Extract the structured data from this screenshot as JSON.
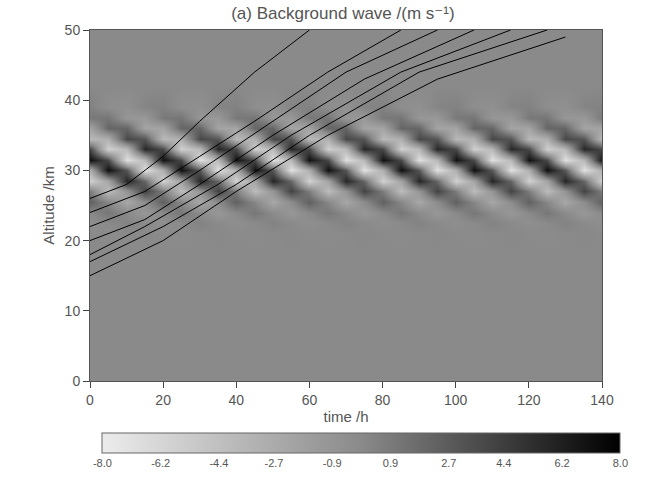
{
  "chart_data": {
    "type": "heatmap",
    "title": "(a) Background wave /(m s⁻¹)",
    "x_label": "time /h",
    "y_label": "Altitude /km",
    "xlim": [
      0,
      140
    ],
    "xticks": [
      0,
      20,
      40,
      60,
      80,
      100,
      120,
      140
    ],
    "ylim": [
      0,
      50
    ],
    "yticks": [
      0,
      10,
      20,
      30,
      40,
      50
    ],
    "x": [
      0,
      5,
      10,
      15,
      20,
      25,
      30,
      35,
      40,
      45,
      50,
      55,
      60,
      65,
      70,
      75,
      80,
      85,
      90,
      95,
      100,
      105,
      110,
      115,
      120,
      125,
      130,
      135,
      140
    ],
    "y": [
      0,
      18,
      21,
      22.5,
      24,
      25.5,
      27,
      28.5,
      30,
      31.5,
      33,
      34.5,
      36,
      37.5,
      39,
      42,
      50
    ],
    "cells": [
      [
        0,
        0,
        0,
        0,
        0,
        0,
        0,
        0,
        0,
        0,
        0,
        0,
        0,
        0,
        0,
        0,
        0,
        0,
        0,
        0,
        0,
        0,
        0,
        0,
        0,
        0,
        0,
        0,
        0
      ],
      [
        0,
        0,
        0,
        0,
        0,
        0,
        0,
        0,
        0,
        0,
        0,
        0,
        0,
        0,
        0,
        0,
        0,
        0,
        0,
        0,
        0,
        0,
        0,
        0,
        0,
        0,
        0,
        0,
        0
      ],
      [
        0,
        -0.1,
        0,
        0.1,
        0,
        -0.1,
        0,
        0.1,
        0,
        -0.1,
        0,
        0.1,
        0,
        -0.1,
        0,
        0.1,
        0,
        -0.1,
        0,
        0.1,
        0,
        -0.1,
        0,
        0.1,
        0,
        -0.1,
        0,
        0.1,
        0
      ],
      [
        -0.4,
        0,
        0.4,
        0,
        -0.4,
        0,
        0.4,
        0,
        -0.4,
        0,
        0.4,
        0,
        -0.4,
        0,
        0.4,
        0,
        -0.4,
        0,
        0.4,
        0,
        -0.4,
        0,
        0.4,
        0,
        -0.4,
        0,
        0.4,
        0,
        -0.4
      ],
      [
        0,
        1.1,
        0,
        -1.1,
        0,
        1.1,
        0,
        -1.1,
        0,
        1.1,
        0,
        -1.1,
        0,
        1.1,
        0,
        -1.1,
        0,
        1.1,
        0,
        -1.1,
        0,
        1.1,
        0,
        -1.1,
        0,
        1.1,
        0,
        -1.1,
        0
      ],
      [
        2.4,
        0.2,
        -2.4,
        -0.2,
        2.4,
        0.2,
        -2.4,
        -0.2,
        2.4,
        0.2,
        -2.4,
        -0.2,
        2.4,
        0.2,
        -2.4,
        -0.2,
        2.4,
        0.2,
        -2.4,
        -0.2,
        2.4,
        0.2,
        -2.4,
        -0.2,
        2.4,
        0.2,
        -2.4,
        -0.2,
        2.4
      ],
      [
        0.8,
        -4.1,
        -0.8,
        4.1,
        0.8,
        -4.1,
        -0.8,
        4.1,
        0.8,
        -4.1,
        -0.8,
        4.1,
        0.8,
        -4.1,
        -0.8,
        4.1,
        0.8,
        -4.1,
        -0.8,
        4.1,
        0.8,
        -4.1,
        -0.8,
        4.1,
        0.8,
        -4.1,
        -0.8,
        4.1,
        0.8
      ],
      [
        -5.8,
        -2.1,
        5.8,
        2.1,
        -5.8,
        -2.1,
        5.8,
        2.1,
        -5.8,
        -2.1,
        5.8,
        2.1,
        -5.8,
        -2.1,
        5.8,
        2.1,
        -5.8,
        -2.1,
        5.8,
        2.1,
        -5.8,
        -2.1,
        5.8,
        2.1,
        -5.8,
        -2.1,
        5.8,
        2.1,
        -5.8
      ],
      [
        -2.9,
        7.1,
        2.9,
        -7.1,
        -2.9,
        7.1,
        2.9,
        -7.1,
        -2.9,
        7.1,
        2.9,
        -7.1,
        -2.9,
        7.1,
        2.9,
        -7.1,
        -2.9,
        7.1,
        2.9,
        -7.1,
        -2.9,
        7.1,
        2.9,
        -7.1,
        -2.9,
        7.1,
        2.9,
        -7.1,
        -2.9
      ],
      [
        7.0,
        3.7,
        -7.0,
        -3.7,
        7.0,
        3.7,
        -7.0,
        -3.7,
        7.0,
        3.7,
        -7.0,
        -3.7,
        7.0,
        3.7,
        -7.0,
        -3.7,
        7.0,
        3.7,
        -7.0,
        -3.7,
        7.0,
        3.7,
        -7.0,
        -3.7,
        7.0,
        3.7,
        -7.0,
        -3.7,
        7.0
      ],
      [
        3.8,
        -5.7,
        -3.8,
        5.7,
        3.8,
        -5.7,
        -3.8,
        5.7,
        3.8,
        -5.7,
        -3.8,
        5.7,
        3.8,
        -5.7,
        -3.8,
        5.7,
        3.8,
        -5.7,
        -3.8,
        5.7,
        3.8,
        -5.7,
        -3.8,
        5.7,
        3.8,
        -5.7,
        -3.8,
        5.7,
        3.8
      ],
      [
        -3.8,
        -3.1,
        3.8,
        3.1,
        -3.8,
        -3.1,
        3.8,
        3.1,
        -3.8,
        -3.1,
        3.8,
        3.1,
        -3.8,
        -3.1,
        3.8,
        3.1,
        -3.8,
        -3.1,
        3.8,
        3.1,
        -3.8,
        -3.1,
        3.8,
        3.1,
        -3.8,
        -3.1,
        3.8,
        3.1,
        -3.8
      ],
      [
        -2.1,
        2.1,
        2.1,
        -2.1,
        -2.1,
        2.1,
        2.1,
        -2.1,
        -2.1,
        2.1,
        2.1,
        -2.1,
        -2.1,
        2.1,
        2.1,
        -2.1,
        -2.1,
        2.1,
        2.1,
        -2.1,
        -2.1,
        2.1,
        2.1,
        -2.1,
        -2.1,
        2.1,
        2.1,
        -2.1,
        -2.1
      ],
      [
        1.0,
        1.2,
        -1.0,
        -1.2,
        1.0,
        1.2,
        -1.0,
        -1.2,
        1.0,
        1.2,
        -1.0,
        -1.2,
        1.0,
        1.2,
        -1.0,
        -1.2,
        1.0,
        1.2,
        -1.0,
        -1.2,
        1.0,
        1.2,
        -1.0,
        -1.2,
        1.0,
        1.2,
        -1.0,
        -1.2,
        1.0
      ],
      [
        0.5,
        -0.3,
        -0.5,
        0.3,
        0.5,
        -0.3,
        -0.5,
        0.3,
        0.5,
        -0.3,
        -0.5,
        0.3,
        0.5,
        -0.3,
        -0.5,
        0.3,
        0.5,
        -0.3,
        -0.5,
        0.3,
        0.5,
        -0.3,
        -0.5,
        0.3,
        0.5,
        -0.3,
        -0.5,
        0.3,
        0.5
      ],
      [
        0,
        0,
        0,
        0,
        0,
        0,
        0,
        0,
        0,
        0,
        0,
        0,
        0,
        0,
        0,
        0,
        0,
        0,
        0,
        0,
        0,
        0,
        0,
        0,
        0,
        0,
        0,
        0,
        0
      ],
      [
        0,
        0,
        0,
        0,
        0,
        0,
        0,
        0,
        0,
        0,
        0,
        0,
        0,
        0,
        0,
        0,
        0,
        0,
        0,
        0,
        0,
        0,
        0,
        0,
        0,
        0,
        0,
        0,
        0
      ]
    ],
    "colorbar_range": [
      -8,
      8
    ],
    "colorbar_ticks": [
      {
        "value": -8,
        "label": "-8.0"
      },
      {
        "value": -6.2,
        "label": "-6.2"
      },
      {
        "value": -4.4,
        "label": "-4.4"
      },
      {
        "value": -2.7,
        "label": "-2.7"
      },
      {
        "value": -0.9,
        "label": "-0.9"
      },
      0.9,
      2.7,
      4.4,
      6.2,
      {
        "value": 8,
        "label": "8.0"
      }
    ],
    "series": [
      {
        "type": "line",
        "color": "#000000",
        "x": [
          0,
          10,
          20,
          30,
          45,
          60
        ],
        "values": [
          26,
          28,
          32,
          37,
          44,
          50
        ]
      },
      {
        "type": "line",
        "color": "#000000",
        "x": [
          0,
          15,
          30,
          45,
          65,
          85
        ],
        "values": [
          24,
          27,
          32,
          37,
          44,
          50
        ]
      },
      {
        "type": "line",
        "color": "#000000",
        "x": [
          0,
          15,
          30,
          50,
          70,
          95
        ],
        "values": [
          22,
          25,
          30,
          37,
          44,
          50
        ]
      },
      {
        "type": "line",
        "color": "#000000",
        "x": [
          0,
          15,
          30,
          50,
          75,
          105
        ],
        "values": [
          20,
          23,
          28,
          35,
          43,
          50
        ]
      },
      {
        "type": "line",
        "color": "#000000",
        "x": [
          0,
          15,
          35,
          55,
          85,
          115
        ],
        "values": [
          18,
          22,
          28,
          35,
          44,
          50
        ]
      },
      {
        "type": "line",
        "color": "#000000",
        "x": [
          0,
          20,
          40,
          60,
          90,
          125
        ],
        "values": [
          17,
          22,
          28,
          35,
          44,
          50
        ]
      },
      {
        "type": "line",
        "color": "#000000",
        "x": [
          0,
          20,
          40,
          65,
          95,
          130
        ],
        "values": [
          15,
          20,
          27,
          35,
          43,
          49
        ]
      }
    ]
  }
}
